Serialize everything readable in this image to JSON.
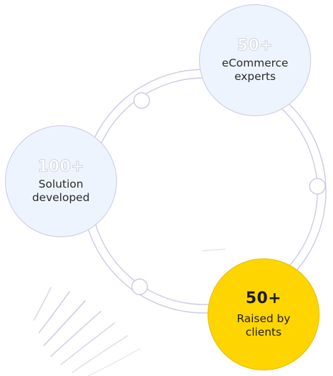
{
  "stats": [
    {
      "number": "50+",
      "caption_line1": "eCommerce",
      "caption_line2": "experts"
    },
    {
      "number": "100+",
      "caption_line1": "Solution",
      "caption_line2": "developed"
    },
    {
      "number": "50+",
      "caption_line1": "Raised by",
      "caption_line2": "clients"
    }
  ],
  "colors": {
    "light_circle": "#eef4fd",
    "accent_circle": "#ffd500",
    "ring_stroke": "#c9c9e6",
    "decor_stroke": "#b3b3d3"
  }
}
